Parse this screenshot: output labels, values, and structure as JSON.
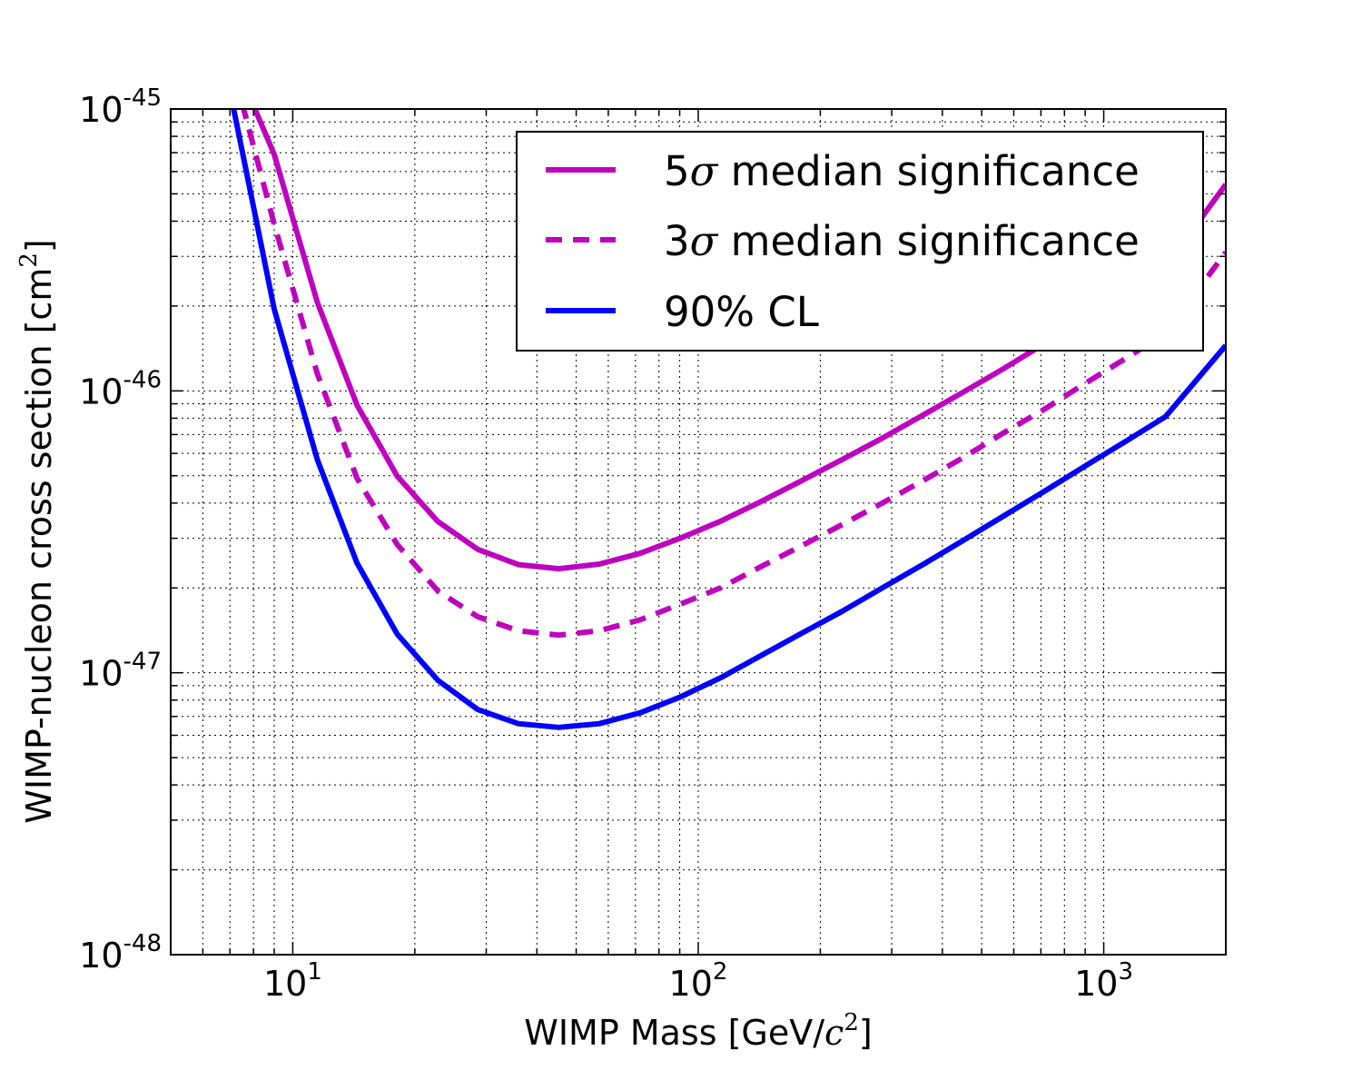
{
  "chart_data": {
    "type": "line",
    "title": "",
    "xlabel": {
      "prefix": "WIMP Mass [GeV/",
      "math": "c",
      "sup": "2",
      "suffix": "]"
    },
    "ylabel": {
      "prefix": "WIMP-nucleon cross section [cm",
      "sup": "2",
      "suffix": "]"
    },
    "x_scale": "log",
    "y_scale": "log",
    "xlim": [
      5,
      2000
    ],
    "ylim": [
      1e-48,
      1e-45
    ],
    "grid": true,
    "legend_position": "top-right",
    "x_ticks": [
      {
        "value": 10,
        "base": "10",
        "exp": "1"
      },
      {
        "value": 100,
        "base": "10",
        "exp": "2"
      },
      {
        "value": 1000,
        "base": "10",
        "exp": "3"
      }
    ],
    "y_ticks": [
      {
        "value": 1e-48,
        "base": "10",
        "exp": "-48"
      },
      {
        "value": 1e-47,
        "base": "10",
        "exp": "-47"
      },
      {
        "value": 1e-46,
        "base": "10",
        "exp": "-46"
      },
      {
        "value": 1e-45,
        "base": "10",
        "exp": "-45"
      }
    ],
    "series": [
      {
        "name": "5σ median significance",
        "legend": {
          "num": "5",
          "sym": "σ",
          "rest": " median significance"
        },
        "color": "#bf00bf",
        "style": "solid",
        "x": [
          7.95,
          9.0,
          11.5,
          14.4,
          18.1,
          22.8,
          28.6,
          36.0,
          45.3,
          57.0,
          71.7,
          90.2,
          113.5,
          142.8,
          179.7,
          226.1,
          284.5,
          358.0,
          450.4,
          566.7,
          713.1,
          897.2,
          1128.9,
          1420.4,
          2000
        ],
        "y": [
          1.05e-45,
          6.9e-46,
          2.06e-46,
          8.9e-47,
          4.98e-47,
          3.44e-47,
          2.74e-47,
          2.42e-47,
          2.34e-47,
          2.43e-47,
          2.65e-47,
          3e-47,
          3.45e-47,
          4.05e-47,
          4.8e-47,
          5.7e-47,
          6.8e-47,
          8.2e-47,
          9.9e-47,
          1.2e-46,
          1.47e-46,
          1.8e-46,
          2.22e-46,
          2.75e-46,
          5.4e-46
        ]
      },
      {
        "name": "3σ median significance",
        "legend": {
          "num": "3",
          "sym": "σ",
          "rest": " median significance"
        },
        "color": "#bf00bf",
        "style": "dashed",
        "x": [
          7.5,
          9.0,
          11.5,
          14.4,
          18.1,
          22.8,
          28.6,
          36.0,
          45.3,
          57.0,
          71.7,
          90.2,
          113.5,
          142.8,
          179.7,
          226.1,
          284.5,
          358.0,
          450.4,
          566.7,
          713.1,
          897.2,
          1128.9,
          1420.4,
          2000
        ],
        "y": [
          1.05e-45,
          3.9e-46,
          1.15e-46,
          4.9e-47,
          2.85e-47,
          1.95e-47,
          1.58e-47,
          1.41e-47,
          1.36e-47,
          1.41e-47,
          1.54e-47,
          1.75e-47,
          2e-47,
          2.38e-47,
          2.82e-47,
          3.35e-47,
          4e-47,
          4.8e-47,
          5.8e-47,
          7.1e-47,
          8.6e-47,
          1.06e-46,
          1.3e-46,
          1.6e-46,
          3.1e-46
        ]
      },
      {
        "name": "90% CL",
        "legend": {
          "num": "",
          "sym": "",
          "rest": "90% CL"
        },
        "color": "#0000ff",
        "style": "solid",
        "x": [
          7.1,
          9.0,
          11.5,
          14.4,
          18.1,
          22.8,
          28.6,
          36.0,
          45.3,
          57.0,
          71.7,
          90.2,
          113.5,
          142.8,
          179.7,
          226.1,
          284.5,
          358.0,
          450.4,
          566.7,
          713.1,
          897.2,
          1128.9,
          1420.4,
          2000
        ],
        "y": [
          1.05e-45,
          1.95e-46,
          5.7e-47,
          2.45e-47,
          1.37e-47,
          9.4e-48,
          7.4e-48,
          6.6e-48,
          6.4e-48,
          6.6e-48,
          7.2e-48,
          8.2e-48,
          9.6e-48,
          1.15e-47,
          1.38e-47,
          1.65e-47,
          2e-47,
          2.42e-47,
          2.95e-47,
          3.6e-47,
          4.4e-47,
          5.4e-47,
          6.6e-47,
          8.1e-47,
          1.45e-46
        ]
      }
    ]
  }
}
